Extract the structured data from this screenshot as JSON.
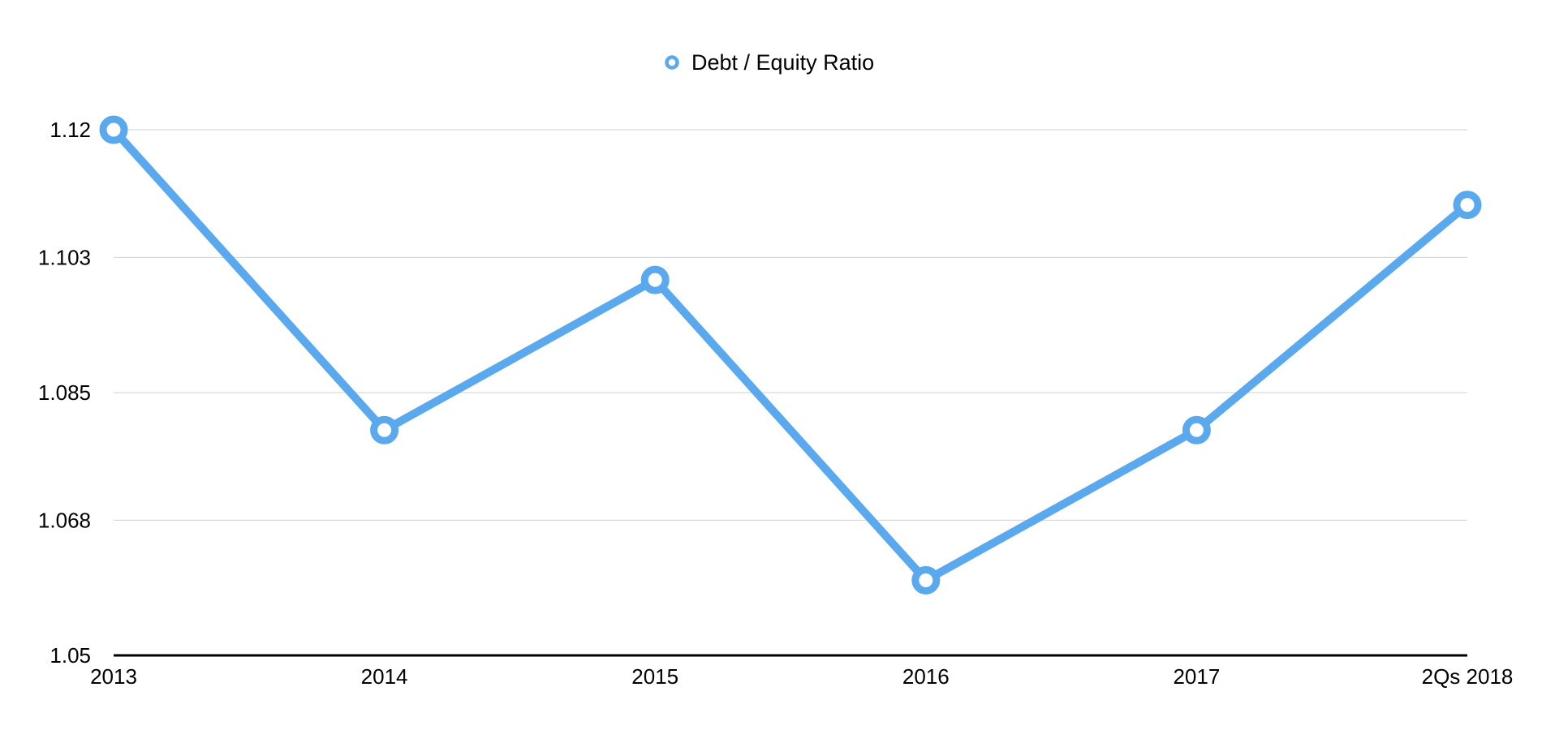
{
  "chart_data": {
    "type": "line",
    "title": "",
    "xlabel": "",
    "ylabel": "",
    "categories": [
      "2013",
      "2014",
      "2015",
      "2016",
      "2017",
      "2Qs 2018"
    ],
    "series": [
      {
        "name": "Debt / Equity Ratio",
        "values": [
          1.12,
          1.08,
          1.1,
          1.06,
          1.08,
          1.11
        ]
      }
    ],
    "ylim": [
      1.05,
      1.12
    ],
    "yticks": [
      1.05,
      1.068,
      1.085,
      1.103,
      1.12
    ],
    "ytick_labels": [
      "1.05",
      "1.068",
      "1.085",
      "1.103",
      "1.12"
    ],
    "grid": true,
    "legend_position": "top-center",
    "colors": {
      "series": "#5aa9ee",
      "grid": "#d9d9d9",
      "axis": "#000000",
      "marker_fill": "#ffffff"
    }
  }
}
